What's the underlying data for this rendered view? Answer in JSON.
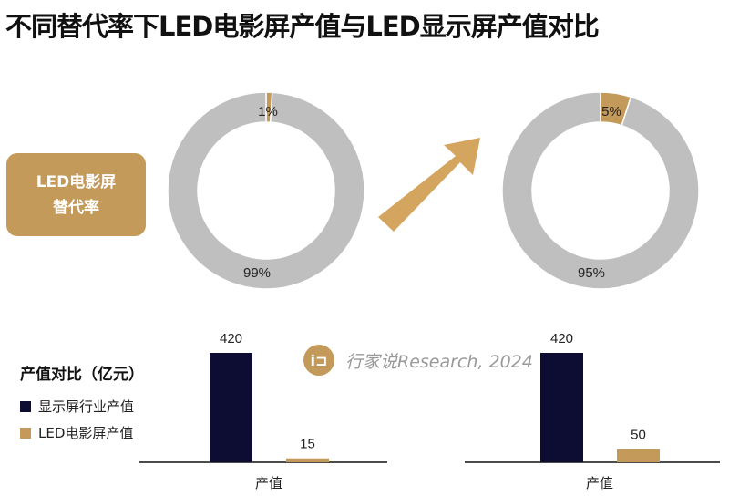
{
  "title": "不同替代率下LED电影屏产值与LED显示屏产值对比",
  "rate_box": {
    "line1": "LED电影屏",
    "line2": "替代率"
  },
  "legend": {
    "title": "产值对比（亿元）",
    "items": [
      {
        "label": "显示屏行业产值",
        "color": "#0d0d33"
      },
      {
        "label": "LED电影屏产值",
        "color": "#c49a5a"
      }
    ]
  },
  "watermark": {
    "logo": "行",
    "text": "行家说Research, 2024"
  },
  "colors": {
    "gold": "#c49a5a",
    "gray": "#bfbfbf",
    "navy": "#0d0d33"
  },
  "chart_data": [
    {
      "type": "pie",
      "donut": true,
      "slices": [
        {
          "label": "1%",
          "value": 1,
          "color": "#c49a5a"
        },
        {
          "label": "99%",
          "value": 99,
          "color": "#bfbfbf"
        }
      ]
    },
    {
      "type": "pie",
      "donut": true,
      "slices": [
        {
          "label": "5%",
          "value": 5,
          "color": "#c49a5a"
        },
        {
          "label": "95%",
          "value": 95,
          "color": "#bfbfbf"
        }
      ]
    },
    {
      "type": "bar",
      "categories": [
        "产值"
      ],
      "series": [
        {
          "name": "显示屏行业产值",
          "values": [
            420
          ],
          "label": "420"
        },
        {
          "name": "LED电影屏产值",
          "values": [
            15
          ],
          "label": "15"
        }
      ]
    },
    {
      "type": "bar",
      "categories": [
        "产值"
      ],
      "series": [
        {
          "name": "显示屏行业产值",
          "values": [
            420
          ],
          "label": "420"
        },
        {
          "name": "LED电影屏产值",
          "values": [
            50
          ],
          "label": "50"
        }
      ]
    }
  ]
}
